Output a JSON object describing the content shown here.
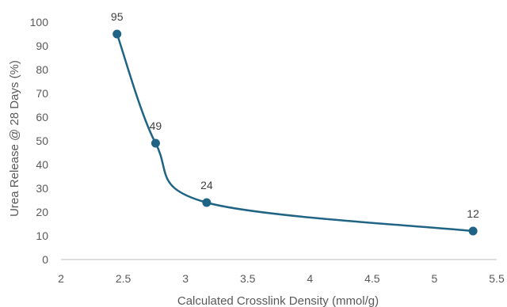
{
  "chart_data": {
    "type": "scatter",
    "title": "",
    "xlabel": "Calculated Crosslink Density (mmol/g)",
    "ylabel": "Urea Release @ 28 Days (%)",
    "xlim": [
      2,
      5.5
    ],
    "ylim": [
      0,
      100
    ],
    "x_ticks": [
      "2",
      "2.5",
      "3",
      "3.5",
      "4",
      "4.5",
      "5",
      "5.5"
    ],
    "y_ticks": [
      "0",
      "10",
      "20",
      "30",
      "40",
      "50",
      "60",
      "70",
      "80",
      "90",
      "100"
    ],
    "grid": false,
    "smoothed_line": true,
    "series": [
      {
        "x": [
          2.45,
          2.76,
          3.17,
          5.31
        ],
        "y": [
          95,
          49,
          24,
          12
        ],
        "labels": [
          "95",
          "49",
          "24",
          "12"
        ]
      }
    ],
    "colors": {
      "series": "#1f6385",
      "axis": "#bfbfbf",
      "text": "#595959"
    }
  }
}
